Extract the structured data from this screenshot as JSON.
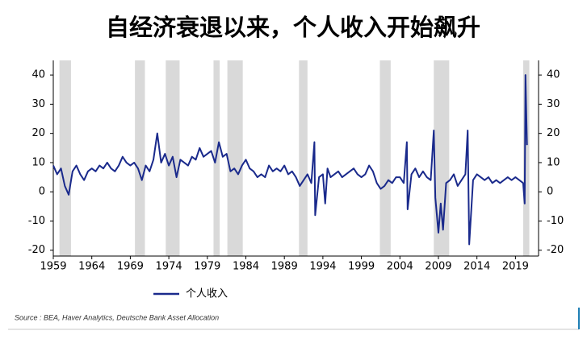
{
  "chart_data": {
    "type": "line",
    "title": "自经济衰退以来，个人收入开始飙升",
    "source": "Source : BEA, Haver Analytics, Deutsche Bank Asset Allocation",
    "xlim": [
      1959,
      2022
    ],
    "xticks": [
      1959,
      1964,
      1969,
      1974,
      1979,
      1984,
      1989,
      1994,
      1999,
      2004,
      2009,
      2014,
      2019
    ],
    "ylim": [
      -22,
      45
    ],
    "yticks": [
      -20,
      -10,
      0,
      10,
      20,
      30,
      40
    ],
    "band_color": "#d9d9d9",
    "recession_bands": [
      [
        1959.8,
        1961.3
      ],
      [
        1969.6,
        1970.9
      ],
      [
        1973.6,
        1975.4
      ],
      [
        1979.8,
        1980.6
      ],
      [
        1981.6,
        1983.6
      ],
      [
        1990.9,
        1992.0
      ],
      [
        2001.4,
        2002.8
      ],
      [
        2008.4,
        2010.4
      ],
      [
        2020.0,
        2020.8
      ]
    ],
    "series": [
      {
        "name": "个人收入",
        "color": "#1a2a8c",
        "x": [
          1959,
          1959.5,
          1960,
          1960.5,
          1961,
          1961.5,
          1962,
          1962.5,
          1963,
          1963.5,
          1964,
          1964.5,
          1965,
          1965.5,
          1966,
          1966.5,
          1967,
          1967.5,
          1968,
          1968.5,
          1969,
          1969.5,
          1970,
          1970.5,
          1971,
          1971.5,
          1972,
          1972.5,
          1973,
          1973.5,
          1974,
          1974.5,
          1975,
          1975.5,
          1976,
          1976.5,
          1977,
          1977.5,
          1978,
          1978.5,
          1979,
          1979.5,
          1980,
          1980.5,
          1981,
          1981.5,
          1982,
          1982.5,
          1983,
          1983.5,
          1984,
          1984.5,
          1985,
          1985.5,
          1986,
          1986.5,
          1987,
          1987.5,
          1988,
          1988.5,
          1989,
          1989.5,
          1990,
          1990.5,
          1991,
          1991.5,
          1992,
          1992.5,
          1992.9,
          1993,
          1993.5,
          1994,
          1994.3,
          1994.6,
          1995,
          1995.5,
          1996,
          1996.5,
          1997,
          1997.5,
          1998,
          1998.5,
          1999,
          1999.5,
          2000,
          2000.5,
          2001,
          2001.5,
          2002,
          2002.5,
          2003,
          2003.5,
          2004,
          2004.5,
          2004.9,
          2005,
          2005.5,
          2006,
          2006.5,
          2007,
          2007.5,
          2008,
          2008.4,
          2008.6,
          2009,
          2009.3,
          2009.6,
          2010,
          2010.5,
          2011,
          2011.5,
          2012,
          2012.5,
          2012.8,
          2013,
          2013.5,
          2014,
          2014.5,
          2015,
          2015.5,
          2016,
          2016.5,
          2017,
          2017.5,
          2018,
          2018.5,
          2019,
          2019.5,
          2020,
          2020.2,
          2020.3,
          2020.5
        ],
        "values": [
          9,
          6,
          8,
          2,
          -1,
          7,
          9,
          6,
          4,
          7,
          8,
          7,
          9,
          8,
          10,
          8,
          7,
          9,
          12,
          10,
          9,
          10,
          8,
          4,
          9,
          7,
          11,
          20,
          10,
          13,
          9,
          12,
          5,
          11,
          10,
          9,
          12,
          11,
          15,
          12,
          13,
          14,
          10,
          17,
          12,
          13,
          7,
          8,
          6,
          9,
          11,
          8,
          7,
          5,
          6,
          5,
          9,
          7,
          8,
          7,
          9,
          6,
          7,
          5,
          2,
          4,
          6,
          3,
          17,
          -8,
          5,
          6,
          -4,
          8,
          5,
          6,
          7,
          5,
          6,
          7,
          8,
          6,
          5,
          6,
          9,
          7,
          3,
          1,
          2,
          4,
          3,
          5,
          5,
          3,
          17,
          -6,
          6,
          8,
          5,
          7,
          5,
          4,
          21,
          -2,
          -14,
          -4,
          -13,
          3,
          4,
          6,
          2,
          4,
          6,
          21,
          -18,
          4,
          6,
          5,
          4,
          5,
          3,
          4,
          3,
          4,
          5,
          4,
          5,
          4,
          3,
          -4,
          40,
          16
        ]
      }
    ]
  }
}
